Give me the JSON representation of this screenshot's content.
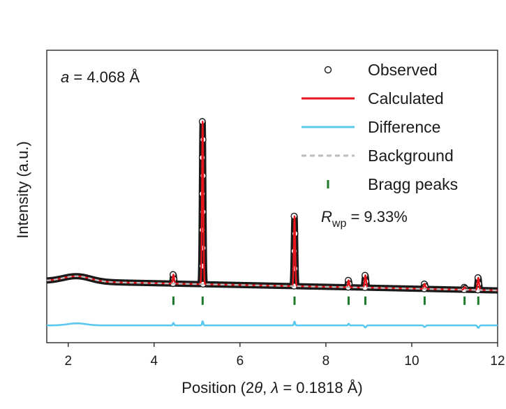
{
  "chart_data": {
    "type": "line",
    "title": "",
    "xlabel": "Position (2θ, λ = 0.1818 Å)",
    "xlabel_parts": {
      "prefix": "Position (2",
      "theta": "θ",
      "sep": ", ",
      "lambda": "λ",
      "suffix": " = 0.1818 Å)"
    },
    "ylabel": "Intensity (a.u.)",
    "xlim": [
      1.5,
      12
    ],
    "ylim": [
      -1.3,
      5.8
    ],
    "x_ticks": [
      2,
      4,
      6,
      8,
      10,
      12
    ],
    "y_ticks": [],
    "grid": false,
    "annotation_lattice": {
      "var": "a",
      "text": " = 4.068 Å"
    },
    "annotation_rwp": {
      "var": "R",
      "sub": "wp",
      "text": " = 9.33%"
    },
    "legend": [
      {
        "key": "observed",
        "label": "Observed",
        "marker": "open-circle",
        "color": "#1a1a1a"
      },
      {
        "key": "calculated",
        "label": "Calculated",
        "marker": "line",
        "color": "#e8141b"
      },
      {
        "key": "difference",
        "label": "Difference",
        "marker": "line",
        "color": "#5bc8ee"
      },
      {
        "key": "background",
        "label": "Background",
        "marker": "dashed-line",
        "color": "#bdbdbd"
      },
      {
        "key": "bragg",
        "label": "Bragg peaks",
        "marker": "tick",
        "color": "#1c7a2a"
      }
    ],
    "legend_position": "top-right",
    "background_params": {
      "base": 0.2,
      "hump_center": 2.2,
      "hump_height": 0.13,
      "hump_width": 0.45,
      "slope": 0.022
    },
    "peaks": [
      {
        "x": 4.45,
        "height": 0.22,
        "width": 0.022
      },
      {
        "x": 5.13,
        "height": 3.95,
        "width": 0.022
      },
      {
        "x": 7.27,
        "height": 1.7,
        "width": 0.022
      },
      {
        "x": 8.53,
        "height": 0.17,
        "width": 0.022
      },
      {
        "x": 8.92,
        "height": 0.3,
        "width": 0.025
      },
      {
        "x": 10.3,
        "height": 0.12,
        "width": 0.025
      },
      {
        "x": 11.23,
        "height": 0.06,
        "width": 0.025
      },
      {
        "x": 11.55,
        "height": 0.3,
        "width": 0.025
      }
    ],
    "bragg_positions": [
      4.45,
      5.13,
      7.27,
      8.53,
      8.92,
      10.3,
      11.23,
      11.55
    ],
    "bragg_y": -0.28,
    "difference_offset": -0.88,
    "difference_features": [
      {
        "x": 2.2,
        "amp": 0.05,
        "width": 0.3
      },
      {
        "x": 4.45,
        "amp": 0.06,
        "width": 0.02
      },
      {
        "x": 5.13,
        "amp": 0.1,
        "width": 0.02
      },
      {
        "x": 7.27,
        "amp": 0.09,
        "width": 0.02
      },
      {
        "x": 8.53,
        "amp": 0.04,
        "width": 0.02
      },
      {
        "x": 8.92,
        "amp": -0.05,
        "width": 0.03
      },
      {
        "x": 10.3,
        "amp": -0.04,
        "width": 0.03
      },
      {
        "x": 11.55,
        "amp": -0.06,
        "width": 0.03
      }
    ],
    "styles": {
      "observed_color": "#1a1a1a",
      "calculated_color": "#e8141b",
      "difference_color": "#5bc8ee",
      "background_color": "#bdbdbd",
      "bragg_color": "#1c7a2a",
      "axis_color": "#1a1a1a"
    }
  }
}
